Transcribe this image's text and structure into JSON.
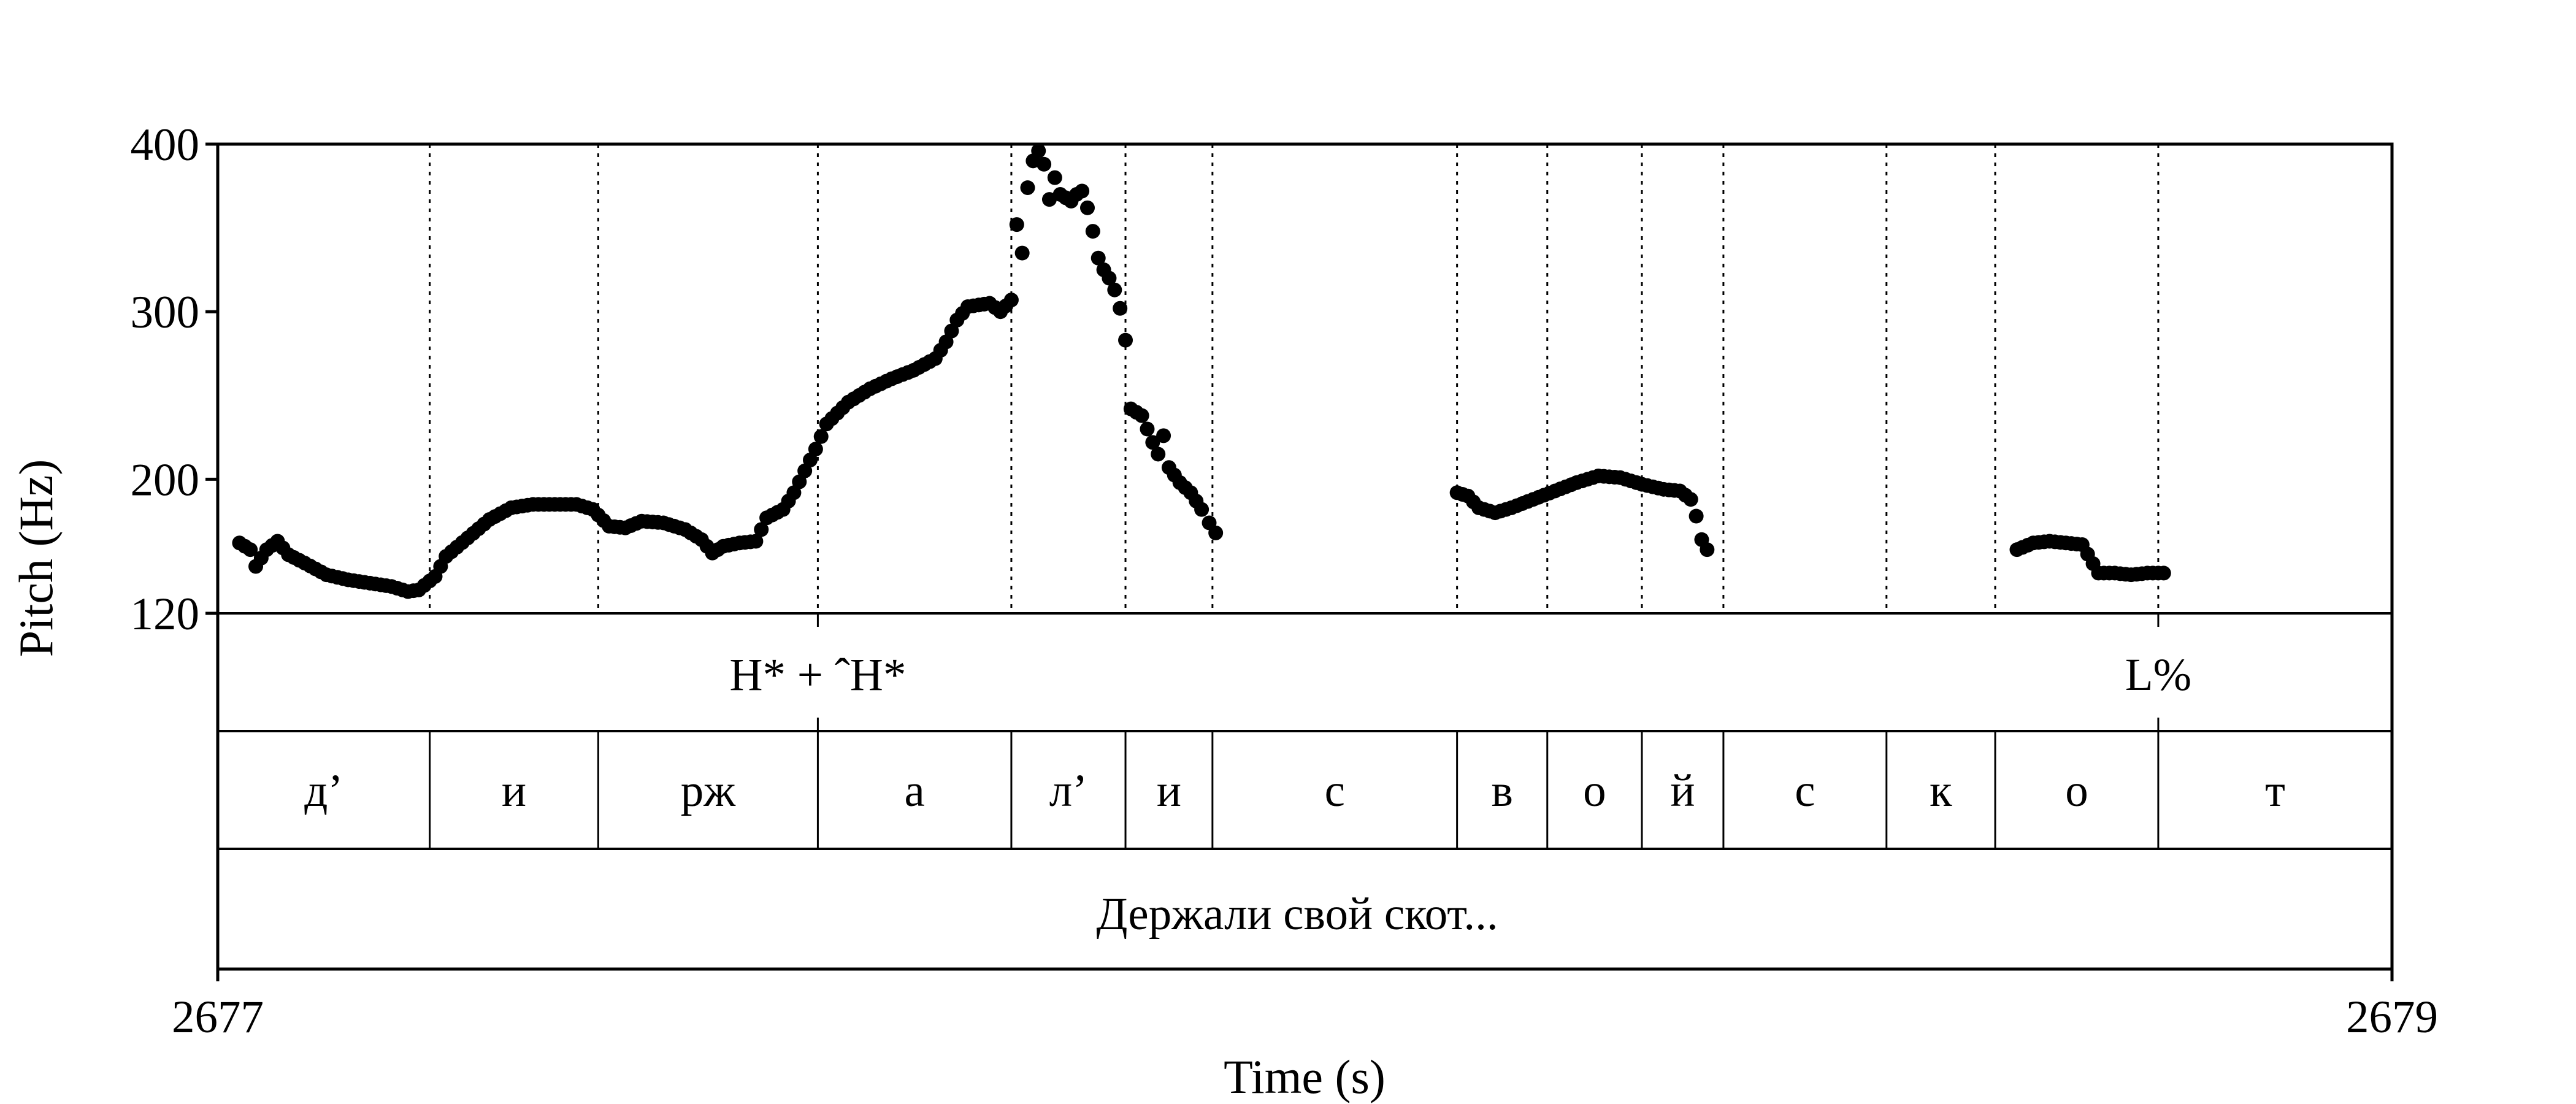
{
  "chart_data": {
    "type": "scatter",
    "xlabel": "Time (s)",
    "ylabel": "Pitch (Hz)",
    "xlim": [
      2677,
      2679
    ],
    "ylim": [
      120,
      400
    ],
    "x_ticks": [
      "2677",
      "2679"
    ],
    "y_ticks": [
      400,
      300,
      200,
      120
    ],
    "boundaries": [
      2677.195,
      2677.35,
      2677.552,
      2677.73,
      2677.835,
      2677.915,
      2678.14,
      2678.223,
      2678.31,
      2678.385,
      2678.535,
      2678.635,
      2678.785
    ],
    "tones": [
      {
        "label": "H* + ˆH*",
        "time": 2677.552
      },
      {
        "label": "L%",
        "time": 2678.785
      }
    ],
    "segments": [
      {
        "label": "д’",
        "start": 2677.0,
        "end": 2677.195
      },
      {
        "label": "и",
        "start": 2677.195,
        "end": 2677.35
      },
      {
        "label": "рж",
        "start": 2677.35,
        "end": 2677.552
      },
      {
        "label": "а",
        "start": 2677.552,
        "end": 2677.73
      },
      {
        "label": "л’",
        "start": 2677.73,
        "end": 2677.835
      },
      {
        "label": "и",
        "start": 2677.835,
        "end": 2677.915
      },
      {
        "label": "с",
        "start": 2677.915,
        "end": 2678.14
      },
      {
        "label": "в",
        "start": 2678.14,
        "end": 2678.223
      },
      {
        "label": "о",
        "start": 2678.223,
        "end": 2678.31
      },
      {
        "label": "й",
        "start": 2678.31,
        "end": 2678.385
      },
      {
        "label": "с",
        "start": 2678.385,
        "end": 2678.535
      },
      {
        "label": "к",
        "start": 2678.535,
        "end": 2678.635
      },
      {
        "label": "о",
        "start": 2678.635,
        "end": 2678.785
      },
      {
        "label": "т",
        "start": 2678.785,
        "end": 2679.0
      }
    ],
    "sentence": "Держали свой скот...",
    "pitch_series": [
      {
        "x": 2677.02,
        "y": 162
      },
      {
        "x": 2677.03,
        "y": 158
      },
      {
        "x": 2677.035,
        "y": 148
      },
      {
        "x": 2677.045,
        "y": 158
      },
      {
        "x": 2677.055,
        "y": 163
      },
      {
        "x": 2677.065,
        "y": 155
      },
      {
        "x": 2677.08,
        "y": 150
      },
      {
        "x": 2677.1,
        "y": 143
      },
      {
        "x": 2677.12,
        "y": 140
      },
      {
        "x": 2677.14,
        "y": 138
      },
      {
        "x": 2677.16,
        "y": 136
      },
      {
        "x": 2677.175,
        "y": 133
      },
      {
        "x": 2677.185,
        "y": 134
      },
      {
        "x": 2677.2,
        "y": 142
      },
      {
        "x": 2677.21,
        "y": 154
      },
      {
        "x": 2677.23,
        "y": 165
      },
      {
        "x": 2677.25,
        "y": 176
      },
      {
        "x": 2677.27,
        "y": 183
      },
      {
        "x": 2677.29,
        "y": 185
      },
      {
        "x": 2677.31,
        "y": 185
      },
      {
        "x": 2677.33,
        "y": 185
      },
      {
        "x": 2677.345,
        "y": 182
      },
      {
        "x": 2677.36,
        "y": 172
      },
      {
        "x": 2677.375,
        "y": 171
      },
      {
        "x": 2677.39,
        "y": 175
      },
      {
        "x": 2677.41,
        "y": 174
      },
      {
        "x": 2677.43,
        "y": 170
      },
      {
        "x": 2677.445,
        "y": 164
      },
      {
        "x": 2677.455,
        "y": 156
      },
      {
        "x": 2677.465,
        "y": 160
      },
      {
        "x": 2677.48,
        "y": 162
      },
      {
        "x": 2677.495,
        "y": 163
      },
      {
        "x": 2677.505,
        "y": 177
      },
      {
        "x": 2677.52,
        "y": 182
      },
      {
        "x": 2677.53,
        "y": 192
      },
      {
        "x": 2677.54,
        "y": 205
      },
      {
        "x": 2677.55,
        "y": 218
      },
      {
        "x": 2677.56,
        "y": 233
      },
      {
        "x": 2677.58,
        "y": 246
      },
      {
        "x": 2677.6,
        "y": 254
      },
      {
        "x": 2677.62,
        "y": 260
      },
      {
        "x": 2677.64,
        "y": 265
      },
      {
        "x": 2677.66,
        "y": 272
      },
      {
        "x": 2677.67,
        "y": 282
      },
      {
        "x": 2677.68,
        "y": 295
      },
      {
        "x": 2677.69,
        "y": 303
      },
      {
        "x": 2677.71,
        "y": 305
      },
      {
        "x": 2677.72,
        "y": 300
      },
      {
        "x": 2677.73,
        "y": 307
      },
      {
        "x": 2677.735,
        "y": 352
      },
      {
        "x": 2677.74,
        "y": 335
      },
      {
        "x": 2677.745,
        "y": 374
      },
      {
        "x": 2677.75,
        "y": 390
      },
      {
        "x": 2677.755,
        "y": 396
      },
      {
        "x": 2677.76,
        "y": 388
      },
      {
        "x": 2677.765,
        "y": 367
      },
      {
        "x": 2677.77,
        "y": 380
      },
      {
        "x": 2677.775,
        "y": 370
      },
      {
        "x": 2677.785,
        "y": 366
      },
      {
        "x": 2677.79,
        "y": 370
      },
      {
        "x": 2677.795,
        "y": 372
      },
      {
        "x": 2677.8,
        "y": 362
      },
      {
        "x": 2677.805,
        "y": 348
      },
      {
        "x": 2677.81,
        "y": 332
      },
      {
        "x": 2677.815,
        "y": 325
      },
      {
        "x": 2677.82,
        "y": 320
      },
      {
        "x": 2677.825,
        "y": 313
      },
      {
        "x": 2677.83,
        "y": 302
      },
      {
        "x": 2677.835,
        "y": 283
      },
      {
        "x": 2677.84,
        "y": 242
      },
      {
        "x": 2677.85,
        "y": 238
      },
      {
        "x": 2677.855,
        "y": 230
      },
      {
        "x": 2677.86,
        "y": 222
      },
      {
        "x": 2677.865,
        "y": 215
      },
      {
        "x": 2677.87,
        "y": 226
      },
      {
        "x": 2677.875,
        "y": 207
      },
      {
        "x": 2677.885,
        "y": 198
      },
      {
        "x": 2677.895,
        "y": 192
      },
      {
        "x": 2677.905,
        "y": 182
      },
      {
        "x": 2677.912,
        "y": 174
      },
      {
        "x": 2677.918,
        "y": 168
      },
      {
        "x": 2678.14,
        "y": 192
      },
      {
        "x": 2678.15,
        "y": 190
      },
      {
        "x": 2678.16,
        "y": 183
      },
      {
        "x": 2678.175,
        "y": 180
      },
      {
        "x": 2678.19,
        "y": 183
      },
      {
        "x": 2678.21,
        "y": 188
      },
      {
        "x": 2678.23,
        "y": 193
      },
      {
        "x": 2678.25,
        "y": 198
      },
      {
        "x": 2678.27,
        "y": 202
      },
      {
        "x": 2678.29,
        "y": 201
      },
      {
        "x": 2678.31,
        "y": 197
      },
      {
        "x": 2678.33,
        "y": 194
      },
      {
        "x": 2678.345,
        "y": 193
      },
      {
        "x": 2678.355,
        "y": 188
      },
      {
        "x": 2678.36,
        "y": 178
      },
      {
        "x": 2678.365,
        "y": 164
      },
      {
        "x": 2678.37,
        "y": 158
      },
      {
        "x": 2678.655,
        "y": 158
      },
      {
        "x": 2678.67,
        "y": 162
      },
      {
        "x": 2678.685,
        "y": 163
      },
      {
        "x": 2678.7,
        "y": 162
      },
      {
        "x": 2678.715,
        "y": 161
      },
      {
        "x": 2678.73,
        "y": 144
      },
      {
        "x": 2678.745,
        "y": 144
      },
      {
        "x": 2678.76,
        "y": 143
      },
      {
        "x": 2678.775,
        "y": 144
      },
      {
        "x": 2678.79,
        "y": 144
      }
    ]
  }
}
